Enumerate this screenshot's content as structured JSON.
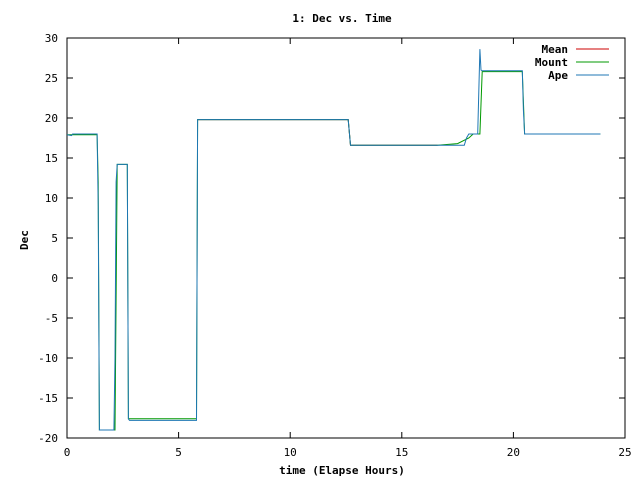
{
  "chart_data": {
    "type": "line",
    "title": "1: Dec vs. Time",
    "xlabel": "time (Elapse Hours)",
    "ylabel": "Dec",
    "xlim": [
      0,
      25
    ],
    "ylim": [
      -20,
      30
    ],
    "xticks": [
      0,
      5,
      10,
      15,
      20,
      25
    ],
    "yticks": [
      -20,
      -15,
      -10,
      -5,
      0,
      5,
      10,
      15,
      20,
      25,
      30
    ],
    "grid": false,
    "legend_position": "top-right",
    "series": [
      {
        "name": "Mean",
        "color": "#cc0000",
        "x": [
          5.85,
          12.6,
          12.7,
          16.6
        ],
        "y": [
          19.8,
          19.8,
          16.6,
          16.6
        ]
      },
      {
        "name": "Mount",
        "color": "#009900",
        "x": [
          0,
          1.35,
          1.4,
          1.45,
          1.5,
          1.55,
          2.15,
          2.25,
          2.3,
          2.35,
          2.7,
          2.75,
          2.8,
          5.8,
          5.85,
          12.6,
          12.7,
          16.6,
          17.5,
          18.0,
          18.2,
          18.5,
          18.6,
          20.4,
          20.5,
          23.9
        ],
        "y": [
          17.9,
          17.9,
          12,
          -19,
          -19,
          -19,
          -19,
          14.2,
          14.2,
          14.2,
          14.2,
          -17.6,
          -17.6,
          -17.6,
          19.8,
          19.8,
          16.6,
          16.6,
          16.8,
          17.5,
          18.0,
          18.0,
          25.8,
          25.8,
          18.0,
          18.0
        ]
      },
      {
        "name": "Ape",
        "color": "#1f77b4",
        "x": [
          0,
          0.2,
          0.25,
          0.5,
          1.35,
          1.4,
          1.45,
          1.55,
          2.1,
          2.15,
          2.2,
          2.25,
          2.35,
          2.45,
          2.7,
          2.75,
          2.8,
          5.8,
          5.85,
          12.6,
          12.7,
          16.6,
          17.8,
          17.9,
          18.0,
          18.4,
          18.5,
          18.55,
          18.6,
          20.4,
          20.45,
          20.5,
          23.9
        ],
        "y": [
          17.9,
          17.8,
          18.0,
          18.0,
          18.0,
          9,
          -19,
          -19,
          -19,
          -10,
          12,
          14.2,
          14.2,
          14.2,
          14.2,
          -17.6,
          -17.8,
          -17.8,
          19.8,
          19.8,
          16.6,
          16.6,
          16.6,
          17.5,
          18.0,
          18.0,
          28.6,
          26,
          25.9,
          25.9,
          21,
          18.0,
          18.0
        ]
      }
    ]
  }
}
